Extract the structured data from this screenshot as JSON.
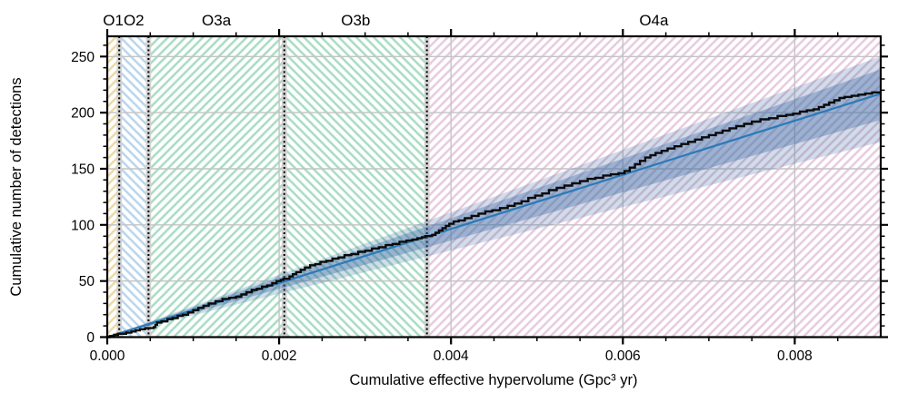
{
  "chart_data": {
    "type": "line",
    "title": "",
    "xlabel": "Cumulative effective hypervolume (Gpc³ yr)",
    "ylabel": "Cumulative number of detections",
    "xlim": [
      0,
      0.009
    ],
    "ylim": [
      0,
      268
    ],
    "grid": true,
    "x_major_ticks": [
      {
        "value": 0,
        "label": "0.000"
      },
      {
        "value": 0.002,
        "label": "0.002"
      },
      {
        "value": 0.004,
        "label": "0.004"
      },
      {
        "value": 0.006,
        "label": "0.006"
      },
      {
        "value": 0.008,
        "label": "0.008"
      }
    ],
    "x_minor_step": 0.0005,
    "y_major_ticks": [
      {
        "value": 0,
        "label": "0"
      },
      {
        "value": 50,
        "label": "50"
      },
      {
        "value": 100,
        "label": "100"
      },
      {
        "value": 150,
        "label": "150"
      },
      {
        "value": 200,
        "label": "200"
      },
      {
        "value": 250,
        "label": "250"
      }
    ],
    "y_minor_step": 10,
    "observing_runs": [
      {
        "label": "O1",
        "start": 0,
        "end": 0.00014,
        "hatch_color": "#edd9a5",
        "hatch_direction": "/"
      },
      {
        "label": "O2",
        "start": 0.00014,
        "end": 0.00048,
        "hatch_color": "#b9d5ec",
        "hatch_direction": "\\"
      },
      {
        "label": "O3a",
        "start": 0.00048,
        "end": 0.00206,
        "hatch_color": "#a8dcc4",
        "hatch_direction": "/"
      },
      {
        "label": "O3b",
        "start": 0.00206,
        "end": 0.00372,
        "hatch_color": "#a8dcc4",
        "hatch_direction": "\\"
      },
      {
        "label": "O4a",
        "start": 0.00372,
        "end": 0.009,
        "hatch_color": "#e6cbde",
        "hatch_direction": "/"
      }
    ],
    "run_boundaries": [
      0.00014,
      0.00048,
      0.00206,
      0.00372
    ],
    "cumulative_at_run_end": {
      "O1": 3,
      "O2": 8,
      "O3a": 52,
      "O3b": 90,
      "O4a": 218
    },
    "fit": {
      "name": "expected-detections-fit",
      "color": "#2a7ab8",
      "slope": 24100,
      "inner_band": {
        "slopes": [
          21500,
          26500
        ],
        "color": "rgba(50,100,160,0.34)"
      },
      "outer_band": {
        "slopes": [
          19300,
          27800
        ],
        "color": "rgba(50,100,160,0.22)"
      }
    },
    "step_series": {
      "name": "cumulative-detections",
      "color": "#0b0b0b",
      "final_value": 218,
      "points": [
        [
          3e-05,
          1
        ],
        [
          8e-05,
          2
        ],
        [
          0.000125,
          3
        ],
        [
          0.00022,
          4
        ],
        [
          0.00028,
          5
        ],
        [
          0.00033,
          6
        ],
        [
          0.00038,
          7
        ],
        [
          0.00044,
          8
        ],
        [
          0.00054,
          9
        ],
        [
          0.00056,
          11
        ],
        [
          0.00058,
          13
        ],
        [
          0.00063,
          14
        ],
        [
          0.0007,
          16
        ],
        [
          0.00076,
          17
        ],
        [
          0.00082,
          19
        ],
        [
          0.00088,
          20
        ],
        [
          0.00094,
          22
        ],
        [
          0.001,
          24
        ],
        [
          0.00106,
          26
        ],
        [
          0.00112,
          28
        ],
        [
          0.00118,
          30
        ],
        [
          0.00126,
          32
        ],
        [
          0.00134,
          34
        ],
        [
          0.00142,
          35
        ],
        [
          0.0015,
          36
        ],
        [
          0.00156,
          38
        ],
        [
          0.00162,
          40
        ],
        [
          0.00168,
          42
        ],
        [
          0.00174,
          43
        ],
        [
          0.0018,
          45
        ],
        [
          0.00186,
          46
        ],
        [
          0.00192,
          48
        ],
        [
          0.00197,
          50
        ],
        [
          0.00202,
          51
        ],
        [
          0.00205,
          52
        ],
        [
          0.00212,
          54
        ],
        [
          0.00216,
          56
        ],
        [
          0.0022,
          58
        ],
        [
          0.00225,
          60
        ],
        [
          0.0023,
          62
        ],
        [
          0.00236,
          64
        ],
        [
          0.00242,
          65
        ],
        [
          0.00248,
          67
        ],
        [
          0.00255,
          68
        ],
        [
          0.00262,
          70
        ],
        [
          0.00269,
          71
        ],
        [
          0.00276,
          73
        ],
        [
          0.00284,
          74
        ],
        [
          0.00292,
          76
        ],
        [
          0.003,
          77
        ],
        [
          0.00308,
          79
        ],
        [
          0.00316,
          80
        ],
        [
          0.00324,
          82
        ],
        [
          0.00332,
          83
        ],
        [
          0.0034,
          85
        ],
        [
          0.00348,
          86
        ],
        [
          0.00355,
          87
        ],
        [
          0.00361,
          88
        ],
        [
          0.00366,
          89
        ],
        [
          0.0037,
          90
        ],
        [
          0.00378,
          91
        ],
        [
          0.00382,
          93
        ],
        [
          0.00386,
          95
        ],
        [
          0.0039,
          97
        ],
        [
          0.00394,
          99
        ],
        [
          0.00398,
          101
        ],
        [
          0.00403,
          103
        ],
        [
          0.00409,
          104
        ],
        [
          0.00416,
          106
        ],
        [
          0.00424,
          108
        ],
        [
          0.00432,
          110
        ],
        [
          0.0044,
          112
        ],
        [
          0.00448,
          113
        ],
        [
          0.00457,
          115
        ],
        [
          0.00466,
          117
        ],
        [
          0.00474,
          119
        ],
        [
          0.00482,
          121
        ],
        [
          0.0049,
          124
        ],
        [
          0.00498,
          126
        ],
        [
          0.00506,
          128
        ],
        [
          0.00514,
          131
        ],
        [
          0.00523,
          133
        ],
        [
          0.00532,
          135
        ],
        [
          0.00541,
          137
        ],
        [
          0.0055,
          139
        ],
        [
          0.00559,
          141
        ],
        [
          0.00568,
          142
        ],
        [
          0.00577,
          144
        ],
        [
          0.00586,
          145
        ],
        [
          0.00595,
          146
        ],
        [
          0.00602,
          148
        ],
        [
          0.00608,
          151
        ],
        [
          0.00614,
          154
        ],
        [
          0.0062,
          157
        ],
        [
          0.00626,
          160
        ],
        [
          0.00632,
          162
        ],
        [
          0.00638,
          164
        ],
        [
          0.00645,
          166
        ],
        [
          0.00652,
          168
        ],
        [
          0.0066,
          170
        ],
        [
          0.00668,
          172
        ],
        [
          0.00676,
          174
        ],
        [
          0.00684,
          176
        ],
        [
          0.00692,
          178
        ],
        [
          0.007,
          180
        ],
        [
          0.00708,
          182
        ],
        [
          0.00716,
          184
        ],
        [
          0.00724,
          186
        ],
        [
          0.00732,
          188
        ],
        [
          0.00741,
          190
        ],
        [
          0.0075,
          192
        ],
        [
          0.0076,
          194
        ],
        [
          0.0077,
          195
        ],
        [
          0.0078,
          197
        ],
        [
          0.0079,
          198
        ],
        [
          0.00798,
          199
        ],
        [
          0.00806,
          201
        ],
        [
          0.00814,
          202
        ],
        [
          0.00822,
          203
        ],
        [
          0.00828,
          205
        ],
        [
          0.00834,
          207
        ],
        [
          0.0084,
          209
        ],
        [
          0.00846,
          211
        ],
        [
          0.00852,
          213
        ],
        [
          0.00858,
          214
        ],
        [
          0.00866,
          215
        ],
        [
          0.00874,
          216
        ],
        [
          0.00882,
          217
        ],
        [
          0.0089,
          218
        ]
      ]
    }
  },
  "colors": {
    "background": "#ffffff",
    "gridline": "#c4c4c4",
    "boundary_band": "#d2d2d2",
    "axis": "#000000"
  }
}
